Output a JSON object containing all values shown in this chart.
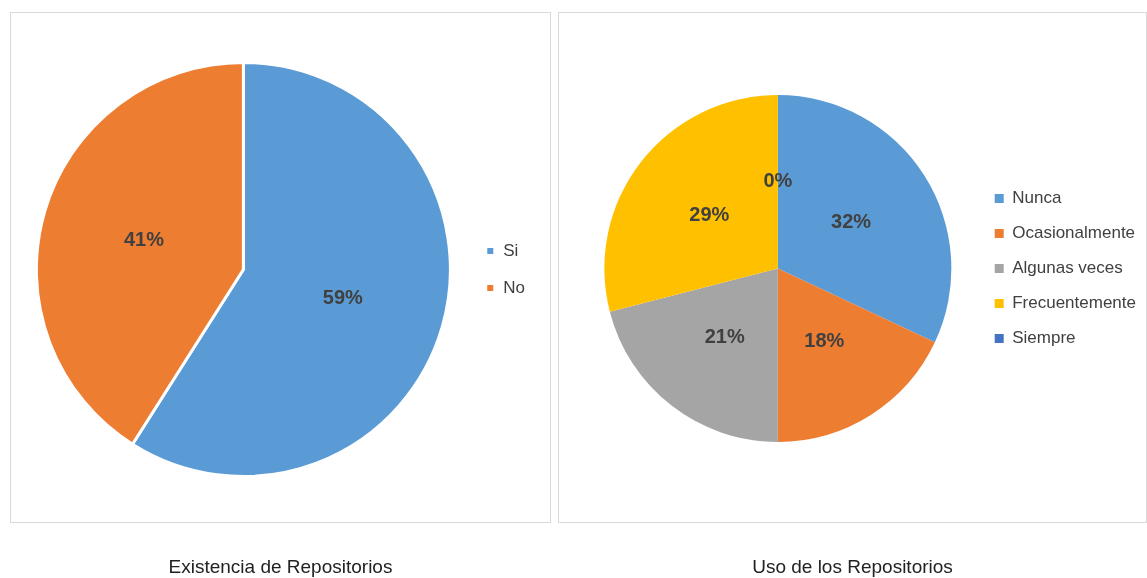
{
  "chart_data": [
    {
      "type": "pie",
      "title": "Existencia de Repositorios",
      "categories": [
        "Si",
        "No"
      ],
      "values": [
        59,
        41
      ],
      "colors": [
        "#5b9bd5",
        "#ed7d31"
      ],
      "value_labels": [
        "59%",
        "41%"
      ],
      "legend": "right"
    },
    {
      "type": "pie",
      "title": "Uso de los Repositorios",
      "categories": [
        "Nunca",
        "Ocasionalmente",
        "Algunas veces",
        "Frecuentemente",
        "Siempre"
      ],
      "values": [
        32,
        18,
        21,
        29,
        0
      ],
      "colors": [
        "#5b9bd5",
        "#ed7d31",
        "#a5a5a5",
        "#ffc000",
        "#4472c4"
      ],
      "value_labels": [
        "32%",
        "18%",
        "21%",
        "29%",
        "0%"
      ],
      "legend": "right"
    }
  ]
}
